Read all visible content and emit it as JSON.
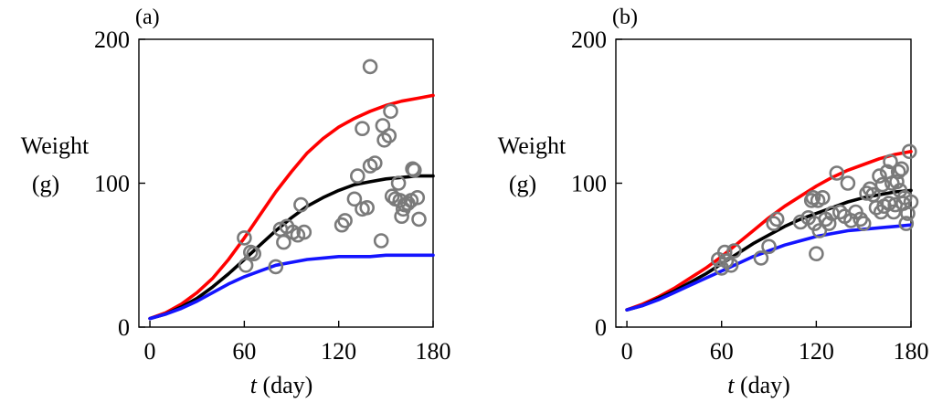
{
  "chart_data": [
    {
      "type": "scatter",
      "panel_label": "(a)",
      "ylabel_line1": "Weight",
      "ylabel_line2": "(g)",
      "xlabel_var": "t",
      "xlabel_unit": " (day)",
      "xlim": [
        -7,
        180
      ],
      "ylim": [
        0,
        200
      ],
      "xticks": [
        0,
        60,
        120,
        180
      ],
      "yticks": [
        0,
        100,
        200
      ],
      "grid": false,
      "legend": "none",
      "colors": {
        "red": "#ff0000",
        "black": "#000000",
        "blue": "#1414ff",
        "points": "#7a7a7a"
      },
      "curves": [
        {
          "color": "red",
          "x": [
            0,
            10,
            20,
            30,
            40,
            50,
            60,
            70,
            80,
            90,
            100,
            110,
            120,
            130,
            140,
            150,
            160,
            170,
            180
          ],
          "y": [
            6,
            10,
            16,
            24,
            34,
            47,
            62,
            78,
            94,
            108,
            121,
            131,
            139,
            145,
            150,
            154,
            157,
            159,
            161
          ]
        },
        {
          "color": "black",
          "x": [
            0,
            10,
            20,
            30,
            40,
            50,
            60,
            70,
            80,
            90,
            100,
            110,
            120,
            130,
            140,
            150,
            160,
            170,
            180
          ],
          "y": [
            6,
            9,
            14,
            20,
            28,
            37,
            47,
            57,
            67,
            76,
            84,
            90,
            95,
            99,
            101,
            103,
            104,
            105,
            105
          ]
        },
        {
          "color": "blue",
          "x": [
            0,
            10,
            20,
            30,
            40,
            50,
            60,
            70,
            80,
            90,
            100,
            110,
            120,
            130,
            140,
            150,
            160,
            170,
            180
          ],
          "y": [
            6,
            9,
            13,
            18,
            24,
            30,
            35,
            39,
            43,
            45,
            47,
            48,
            49,
            49,
            49,
            50,
            50,
            50,
            50
          ]
        }
      ],
      "points": [
        [
          60,
          62
        ],
        [
          61,
          43
        ],
        [
          64,
          52
        ],
        [
          66,
          51
        ],
        [
          80,
          42
        ],
        [
          83,
          68
        ],
        [
          85,
          59
        ],
        [
          87,
          70
        ],
        [
          91,
          66
        ],
        [
          94,
          64
        ],
        [
          96,
          85
        ],
        [
          98,
          66
        ],
        [
          122,
          71
        ],
        [
          124,
          74
        ],
        [
          130,
          89
        ],
        [
          132,
          105
        ],
        [
          135,
          82
        ],
        [
          135,
          138
        ],
        [
          138,
          83
        ],
        [
          140,
          112
        ],
        [
          140,
          181
        ],
        [
          143,
          114
        ],
        [
          147,
          60
        ],
        [
          148,
          140
        ],
        [
          149,
          130
        ],
        [
          152,
          133
        ],
        [
          153,
          150
        ],
        [
          154,
          91
        ],
        [
          156,
          89
        ],
        [
          158,
          100
        ],
        [
          159,
          88
        ],
        [
          160,
          77
        ],
        [
          161,
          82
        ],
        [
          162,
          85
        ],
        [
          164,
          86
        ],
        [
          166,
          88
        ],
        [
          167,
          110
        ],
        [
          168,
          109
        ],
        [
          170,
          90
        ],
        [
          171,
          75
        ]
      ]
    },
    {
      "type": "scatter",
      "panel_label": "(b)",
      "ylabel_line1": "Weight",
      "ylabel_line2": "(g)",
      "xlabel_var": "t",
      "xlabel_unit": " (day)",
      "xlim": [
        -7,
        180
      ],
      "ylim": [
        0,
        200
      ],
      "xticks": [
        0,
        60,
        120,
        180
      ],
      "yticks": [
        0,
        100,
        200
      ],
      "grid": false,
      "legend": "none",
      "colors": {
        "red": "#ff0000",
        "black": "#000000",
        "blue": "#1414ff",
        "points": "#7a7a7a"
      },
      "curves": [
        {
          "color": "red",
          "x": [
            0,
            10,
            20,
            30,
            40,
            50,
            60,
            70,
            80,
            90,
            100,
            110,
            120,
            130,
            140,
            150,
            160,
            170,
            180
          ],
          "y": [
            12,
            16,
            21,
            27,
            34,
            41,
            49,
            58,
            67,
            76,
            84,
            91,
            98,
            104,
            109,
            113,
            117,
            120,
            122
          ]
        },
        {
          "color": "black",
          "x": [
            0,
            10,
            20,
            30,
            40,
            50,
            60,
            70,
            80,
            90,
            100,
            110,
            120,
            130,
            140,
            150,
            160,
            170,
            180
          ],
          "y": [
            12,
            15,
            20,
            25,
            31,
            37,
            44,
            51,
            58,
            64,
            70,
            75,
            79,
            83,
            87,
            90,
            92,
            94,
            95
          ]
        },
        {
          "color": "blue",
          "x": [
            0,
            10,
            20,
            30,
            40,
            50,
            60,
            70,
            80,
            90,
            100,
            110,
            120,
            130,
            140,
            150,
            160,
            170,
            180
          ],
          "y": [
            12,
            15,
            19,
            24,
            29,
            34,
            39,
            44,
            49,
            53,
            57,
            60,
            63,
            65,
            67,
            68,
            69,
            70,
            71
          ]
        }
      ],
      "points": [
        [
          58,
          47
        ],
        [
          60,
          41
        ],
        [
          62,
          52
        ],
        [
          63,
          46
        ],
        [
          66,
          43
        ],
        [
          68,
          53
        ],
        [
          85,
          48
        ],
        [
          90,
          56
        ],
        [
          93,
          72
        ],
        [
          95,
          75
        ],
        [
          110,
          73
        ],
        [
          115,
          76
        ],
        [
          117,
          88
        ],
        [
          118,
          90
        ],
        [
          119,
          72
        ],
        [
          120,
          51
        ],
        [
          121,
          88
        ],
        [
          122,
          67
        ],
        [
          124,
          90
        ],
        [
          126,
          75
        ],
        [
          128,
          72
        ],
        [
          130,
          79
        ],
        [
          133,
          107
        ],
        [
          135,
          80
        ],
        [
          138,
          77
        ],
        [
          140,
          100
        ],
        [
          142,
          74
        ],
        [
          145,
          80
        ],
        [
          148,
          75
        ],
        [
          150,
          72
        ],
        [
          152,
          93
        ],
        [
          154,
          96
        ],
        [
          156,
          92
        ],
        [
          158,
          83
        ],
        [
          160,
          105
        ],
        [
          161,
          80
        ],
        [
          162,
          99
        ],
        [
          163,
          84
        ],
        [
          165,
          108
        ],
        [
          166,
          86
        ],
        [
          167,
          115
        ],
        [
          168,
          100
        ],
        [
          169,
          80
        ],
        [
          170,
          85
        ],
        [
          171,
          101
        ],
        [
          172,
          108
        ],
        [
          173,
          95
        ],
        [
          174,
          110
        ],
        [
          175,
          86
        ],
        [
          176,
          90
        ],
        [
          177,
          72
        ],
        [
          178,
          79
        ],
        [
          179,
          122
        ],
        [
          180,
          87
        ]
      ]
    }
  ]
}
